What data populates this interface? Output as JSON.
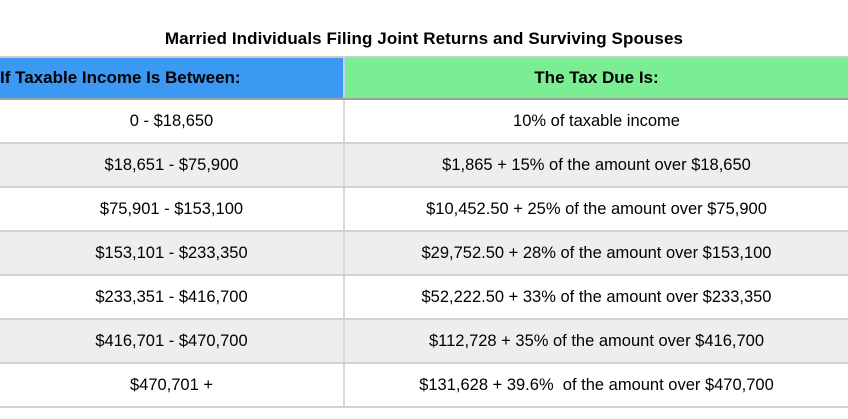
{
  "page": {
    "background": "#ffffff",
    "text_color": "#000000"
  },
  "table": {
    "title": "Married Individuals Filing Joint Returns and Surviving Spouses",
    "columns": [
      {
        "key": "income_range",
        "label": "If Taxable Income Is Between:",
        "header_bg": "#3b99f4",
        "align": "left"
      },
      {
        "key": "tax_due",
        "label": "The Tax Due Is:",
        "header_bg": "#7bee93",
        "align": "center"
      }
    ],
    "rows": [
      {
        "income_range": "0 - $18,650",
        "tax_due": "10% of taxable income"
      },
      {
        "income_range": "$18,651 - $75,900",
        "tax_due": "$1,865 + 15% of the amount over $18,650"
      },
      {
        "income_range": "$75,901 - $153,100",
        "tax_due": "$10,452.50 + 25% of the amount over $75,900"
      },
      {
        "income_range": "$153,101 - $233,350",
        "tax_due": "$29,752.50 + 28% of the amount over $153,100"
      },
      {
        "income_range": "$233,351 - $416,700",
        "tax_due": "$52,222.50 + 33% of the amount over $233,350"
      },
      {
        "income_range": "$416,701 - $470,700",
        "tax_due": "$112,728 + 35% of the amount over $416,700"
      },
      {
        "income_range": "$470,701 +",
        "tax_due": "$131,628 + 39.6%  of the amount over $470,700"
      }
    ],
    "colors": {
      "alt_row_bg": "#eeeeee",
      "row_bg": "#ffffff",
      "row_border": "#d2d2d2",
      "column_divider": "#d8d8d8",
      "header_bottom_border": "#9e9e9e",
      "table_top_border": "#cccccc"
    }
  }
}
